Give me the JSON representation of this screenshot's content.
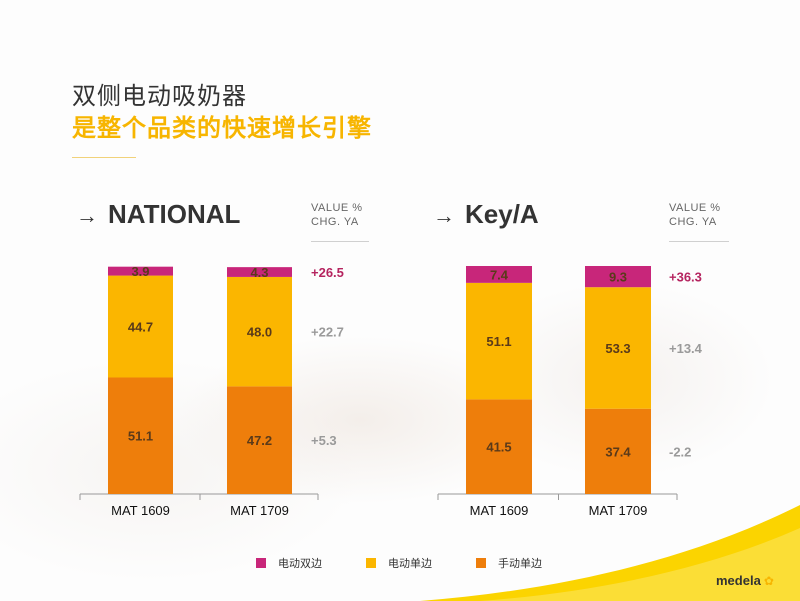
{
  "title": {
    "line1": "双侧电动吸奶器",
    "line2": "是整个品类的快速增长引擎"
  },
  "colors": {
    "dual_electric": "#c8267a",
    "single_electric": "#fbb600",
    "manual_single": "#ee7e0b",
    "accent_yellow": "#f7b500",
    "positive_change": "#b5245f",
    "neutral_change": "#9a9a9a"
  },
  "logo": {
    "text": "medela",
    "icon": "flower-icon"
  },
  "legend": [
    {
      "label": "电动双边",
      "color_key": "dual_electric"
    },
    {
      "label": "电动单边",
      "color_key": "single_electric"
    },
    {
      "label": "手动单边",
      "color_key": "manual_single"
    }
  ],
  "chart_data": [
    {
      "type": "bar",
      "stacked": true,
      "title": "NATIONAL",
      "change_header": [
        "VALUE %",
        "CHG. YA"
      ],
      "categories": [
        "MAT 1609",
        "MAT 1709"
      ],
      "series": [
        {
          "name": "手动单边",
          "color_key": "manual_single",
          "values": [
            51.1,
            47.2
          ],
          "change": "+5.3"
        },
        {
          "name": "电动单边",
          "color_key": "single_electric",
          "values": [
            44.7,
            48.0
          ],
          "change": "+22.7"
        },
        {
          "name": "电动双边",
          "color_key": "dual_electric",
          "values": [
            3.9,
            4.3
          ],
          "change": "+26.5"
        }
      ],
      "ylim": [
        0,
        100
      ]
    },
    {
      "type": "bar",
      "stacked": true,
      "title": "Key/A",
      "change_header": [
        "VALUE %",
        "CHG. YA"
      ],
      "categories": [
        "MAT 1609",
        "MAT 1709"
      ],
      "series": [
        {
          "name": "手动单边",
          "color_key": "manual_single",
          "values": [
            41.5,
            37.4
          ],
          "change": "-2.2"
        },
        {
          "name": "电动单边",
          "color_key": "single_electric",
          "values": [
            51.1,
            53.3
          ],
          "change": "+13.4"
        },
        {
          "name": "电动双边",
          "color_key": "dual_electric",
          "values": [
            7.4,
            9.3
          ],
          "change": "+36.3"
        }
      ],
      "ylim": [
        0,
        100
      ]
    }
  ]
}
